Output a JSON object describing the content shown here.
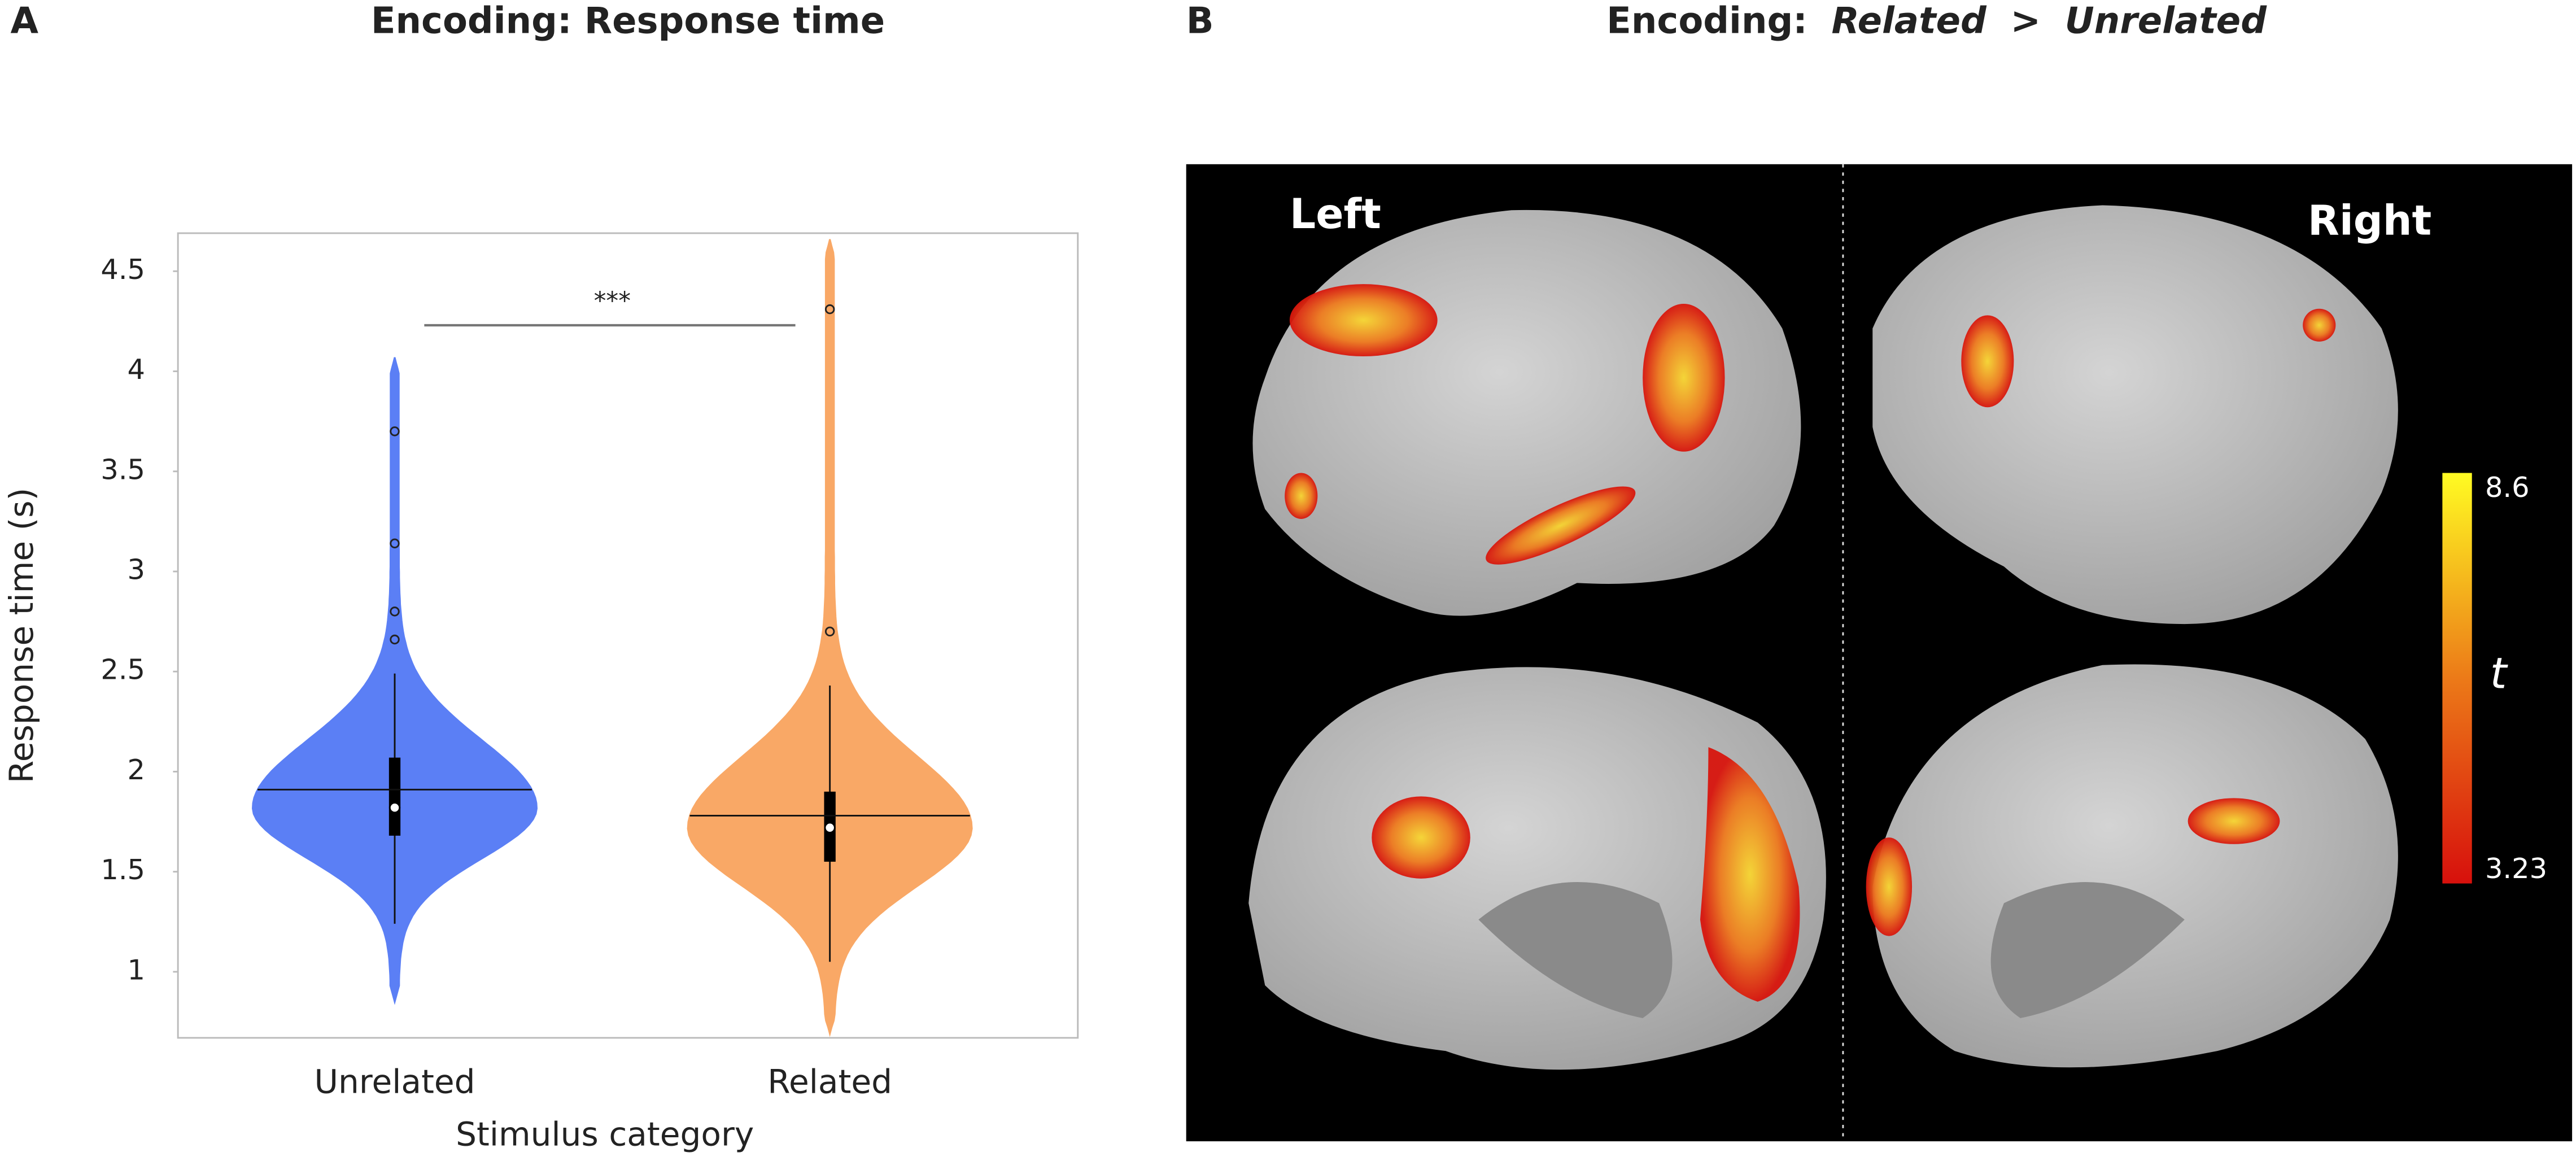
{
  "chart_data": [
    {
      "type": "violin",
      "panel": "A",
      "title": "Encoding: Response time",
      "y_label": "Response time (s)",
      "x_label": "Stimulus category",
      "categories": [
        "Unrelated",
        "Related"
      ],
      "ylim": [
        0.67,
        4.69
      ],
      "yticks": [
        1,
        1.5,
        2,
        2.5,
        3,
        3.5,
        4,
        4.5
      ],
      "violins": [
        {
          "color": "#5b7ff5",
          "min": 0.85,
          "whisker_low": 1.24,
          "q1": 1.68,
          "median": 1.82,
          "mean": 1.91,
          "q3": 2.07,
          "whisker_high": 2.49,
          "max": 4.07,
          "outliers": [
            2.66,
            2.8,
            3.14,
            3.7
          ]
        },
        {
          "color": "#f9a866",
          "min": 0.69,
          "whisker_low": 1.05,
          "q1": 1.55,
          "median": 1.72,
          "mean": 1.78,
          "q3": 1.9,
          "whisker_high": 2.43,
          "max": 4.66,
          "outliers": [
            2.7,
            4.31
          ]
        }
      ],
      "annotation": {
        "text": "***",
        "y": 4.23
      }
    },
    {
      "type": "image",
      "panel": "B",
      "title_parts": [
        "Encoding:",
        "Related",
        ">",
        "Unrelated"
      ],
      "labels": [
        "Left",
        "Right"
      ],
      "colorbar": {
        "label": "t",
        "lim": [
          3.23,
          8.6
        ],
        "ticks": [
          3.23,
          8.6
        ]
      }
    }
  ]
}
